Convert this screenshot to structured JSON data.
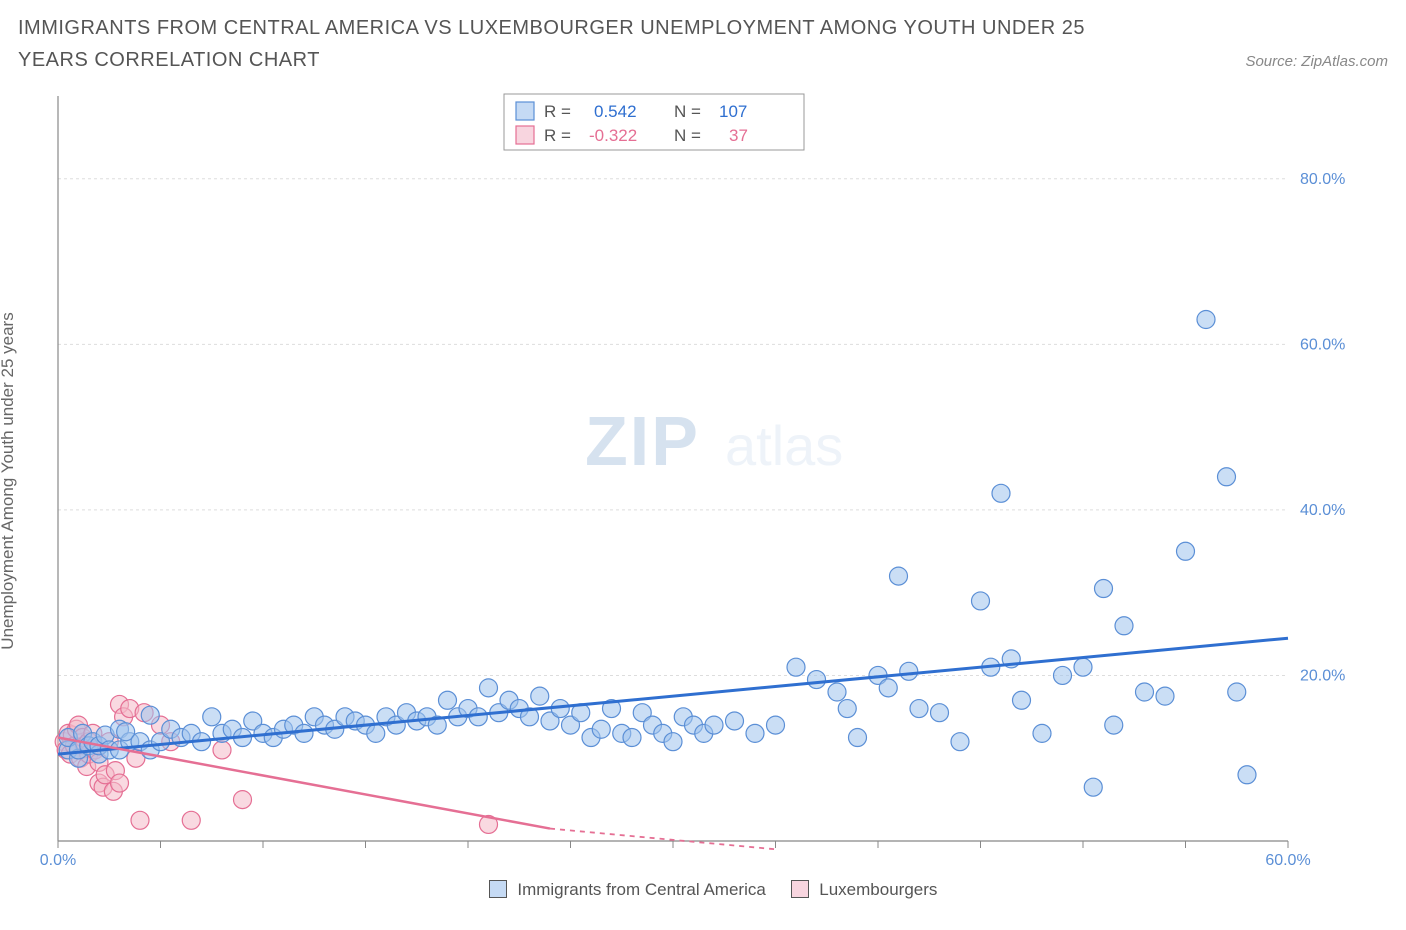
{
  "title": "IMMIGRANTS FROM CENTRAL AMERICA VS LUXEMBOURGER UNEMPLOYMENT AMONG YOUTH UNDER 25 YEARS CORRELATION CHART",
  "source": "Source: ZipAtlas.com",
  "ylabel": "Unemployment Among Youth under 25 years",
  "watermark_a": "ZIP",
  "watermark_b": "atlas",
  "legend": {
    "series_a_label": "Immigrants from Central America",
    "series_b_label": "Luxembourgers"
  },
  "stats": {
    "r_label": "R =",
    "n_label": "N =",
    "series_a": {
      "r": "0.542",
      "n": "107"
    },
    "series_b": {
      "r": "-0.322",
      "n": "37"
    }
  },
  "chart": {
    "type": "scatter",
    "xlim": [
      0,
      60
    ],
    "ylim": [
      0,
      90
    ],
    "xtick_step": 5,
    "ytick_step": 20,
    "ytick_labels": [
      "20.0%",
      "40.0%",
      "60.0%",
      "80.0%"
    ],
    "xtick_anchors": [
      0,
      60
    ],
    "xtick_anchor_labels": [
      "0.0%",
      "60.0%"
    ],
    "background_color": "#ffffff",
    "grid_color": "#dddddd",
    "axis_color": "#888888",
    "marker_radius": 9,
    "series_a": {
      "color_fill": "#9fc2ec",
      "color_stroke": "#5b8fd6",
      "trend_color": "#2f6fd0",
      "trend": {
        "x1": 0,
        "y1": 10.5,
        "x2": 60,
        "y2": 24.5
      },
      "points": [
        [
          0.5,
          11
        ],
        [
          0.5,
          12.5
        ],
        [
          1,
          10
        ],
        [
          1,
          11
        ],
        [
          1.2,
          13
        ],
        [
          1.5,
          11.5
        ],
        [
          1.7,
          12
        ],
        [
          2,
          10.5
        ],
        [
          2,
          11.5
        ],
        [
          2.3,
          12.8
        ],
        [
          2.5,
          11
        ],
        [
          3,
          13.5
        ],
        [
          3,
          11
        ],
        [
          3.5,
          12
        ],
        [
          3.3,
          13.2
        ],
        [
          4,
          12
        ],
        [
          4.5,
          11
        ],
        [
          4.5,
          15.2
        ],
        [
          5,
          12
        ],
        [
          5.5,
          13.5
        ],
        [
          6,
          12.5
        ],
        [
          6.5,
          13
        ],
        [
          7,
          12
        ],
        [
          7.5,
          15
        ],
        [
          8,
          13
        ],
        [
          8.5,
          13.5
        ],
        [
          9,
          12.5
        ],
        [
          9.5,
          14.5
        ],
        [
          10,
          13
        ],
        [
          10.5,
          12.5
        ],
        [
          11,
          13.5
        ],
        [
          11.5,
          14
        ],
        [
          12,
          13
        ],
        [
          12.5,
          15
        ],
        [
          13,
          14
        ],
        [
          13.5,
          13.5
        ],
        [
          14,
          15
        ],
        [
          14.5,
          14.5
        ],
        [
          15,
          14
        ],
        [
          15.5,
          13
        ],
        [
          16,
          15
        ],
        [
          16.5,
          14
        ],
        [
          17,
          15.5
        ],
        [
          17.5,
          14.5
        ],
        [
          18,
          15
        ],
        [
          18.5,
          14
        ],
        [
          19,
          17
        ],
        [
          19.5,
          15
        ],
        [
          20,
          16
        ],
        [
          20.5,
          15
        ],
        [
          21,
          18.5
        ],
        [
          21.5,
          15.5
        ],
        [
          22,
          17
        ],
        [
          22.5,
          16
        ],
        [
          23,
          15
        ],
        [
          23.5,
          17.5
        ],
        [
          24,
          14.5
        ],
        [
          24.5,
          16
        ],
        [
          25,
          14
        ],
        [
          25.5,
          15.5
        ],
        [
          26,
          12.5
        ],
        [
          26.5,
          13.5
        ],
        [
          27,
          16
        ],
        [
          27.5,
          13
        ],
        [
          28,
          12.5
        ],
        [
          28.5,
          15.5
        ],
        [
          29,
          14
        ],
        [
          29.5,
          13
        ],
        [
          30,
          12
        ],
        [
          30.5,
          15
        ],
        [
          31,
          14
        ],
        [
          31.5,
          13
        ],
        [
          32,
          14
        ],
        [
          33,
          14.5
        ],
        [
          34,
          13
        ],
        [
          35,
          14
        ],
        [
          36,
          21
        ],
        [
          37,
          19.5
        ],
        [
          38,
          18
        ],
        [
          38.5,
          16
        ],
        [
          39,
          12.5
        ],
        [
          40,
          20
        ],
        [
          40.5,
          18.5
        ],
        [
          41,
          32
        ],
        [
          41.5,
          20.5
        ],
        [
          42,
          16
        ],
        [
          43,
          15.5
        ],
        [
          44,
          12
        ],
        [
          45,
          29
        ],
        [
          45.5,
          21
        ],
        [
          46,
          42
        ],
        [
          46.5,
          22
        ],
        [
          47,
          17
        ],
        [
          48,
          13
        ],
        [
          49,
          20
        ],
        [
          50,
          21
        ],
        [
          50.5,
          6.5
        ],
        [
          51,
          30.5
        ],
        [
          51.5,
          14
        ],
        [
          52,
          26
        ],
        [
          53,
          18
        ],
        [
          54,
          17.5
        ],
        [
          55,
          35
        ],
        [
          56,
          63
        ],
        [
          57,
          44
        ],
        [
          57.5,
          18
        ],
        [
          58,
          8
        ]
      ]
    },
    "series_b": {
      "color_fill": "#f4b9c9",
      "color_stroke": "#e56f94",
      "trend_color": "#e56f94",
      "trend_solid": {
        "x1": 0,
        "y1": 12.5,
        "x2": 24,
        "y2": 1.5
      },
      "trend_dash": {
        "x1": 24,
        "y1": 1.5,
        "x2": 35,
        "y2": -3
      },
      "points": [
        [
          0.3,
          12
        ],
        [
          0.4,
          11
        ],
        [
          0.5,
          13
        ],
        [
          0.6,
          10.5
        ],
        [
          0.7,
          12.8
        ],
        [
          0.8,
          11.5
        ],
        [
          0.9,
          13.5
        ],
        [
          1,
          11
        ],
        [
          1,
          14
        ],
        [
          1.1,
          10
        ],
        [
          1.2,
          12.5
        ],
        [
          1.3,
          11.5
        ],
        [
          1.4,
          9
        ],
        [
          1.5,
          12
        ],
        [
          1.5,
          10.5
        ],
        [
          1.7,
          13
        ],
        [
          1.8,
          11
        ],
        [
          2,
          9.5
        ],
        [
          2,
          7
        ],
        [
          2.2,
          6.5
        ],
        [
          2.3,
          8
        ],
        [
          2.5,
          12
        ],
        [
          2.7,
          6
        ],
        [
          2.8,
          8.5
        ],
        [
          3,
          7
        ],
        [
          3,
          16.5
        ],
        [
          3.2,
          15
        ],
        [
          3.5,
          16
        ],
        [
          3.8,
          10
        ],
        [
          4,
          2.5
        ],
        [
          4.2,
          15.5
        ],
        [
          5,
          14
        ],
        [
          5.5,
          12
        ],
        [
          6.5,
          2.5
        ],
        [
          8,
          11
        ],
        [
          9,
          5
        ],
        [
          21,
          2
        ]
      ]
    }
  }
}
